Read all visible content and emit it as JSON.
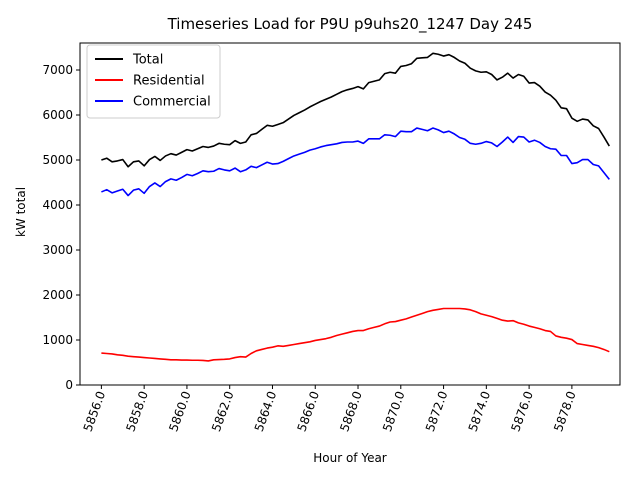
{
  "chart_data": {
    "type": "line",
    "title": "Timeseries Load for P9U p9uhs20_1247  Day 245",
    "xlabel": "Hour of Year",
    "ylabel": "kW total",
    "xlim": [
      5855.0,
      5880.25
    ],
    "ylim": [
      0,
      7600
    ],
    "x_ticks": [
      5856.0,
      5858.0,
      5860.0,
      5862.0,
      5864.0,
      5866.0,
      5868.0,
      5870.0,
      5872.0,
      5874.0,
      5876.0,
      5878.0
    ],
    "x_tick_labels": [
      "5856.0",
      "5858.0",
      "5860.0",
      "5862.0",
      "5864.0",
      "5866.0",
      "5868.0",
      "5870.0",
      "5872.0",
      "5874.0",
      "5876.0",
      "5878.0"
    ],
    "y_ticks": [
      0,
      1000,
      2000,
      3000,
      4000,
      5000,
      6000,
      7000
    ],
    "y_tick_labels": [
      "0",
      "1000",
      "2000",
      "3000",
      "4000",
      "5000",
      "6000",
      "7000"
    ],
    "grid": false,
    "legend_position": "upper-left",
    "x": [
      5856.0,
      5856.25,
      5856.5,
      5856.75,
      5857.0,
      5857.25,
      5857.5,
      5857.75,
      5858.0,
      5858.25,
      5858.5,
      5858.75,
      5859.0,
      5859.25,
      5859.5,
      5859.75,
      5860.0,
      5860.25,
      5860.5,
      5860.75,
      5861.0,
      5861.25,
      5861.5,
      5861.75,
      5862.0,
      5862.25,
      5862.5,
      5862.75,
      5863.0,
      5863.25,
      5863.5,
      5863.75,
      5864.0,
      5864.25,
      5864.5,
      5864.75,
      5865.0,
      5865.25,
      5865.5,
      5865.75,
      5866.0,
      5866.25,
      5866.5,
      5866.75,
      5867.0,
      5867.25,
      5867.5,
      5867.75,
      5868.0,
      5868.25,
      5868.5,
      5868.75,
      5869.0,
      5869.25,
      5869.5,
      5869.75,
      5870.0,
      5870.25,
      5870.5,
      5870.75,
      5871.0,
      5871.25,
      5871.5,
      5871.75,
      5872.0,
      5872.25,
      5872.5,
      5872.75,
      5873.0,
      5873.25,
      5873.5,
      5873.75,
      5874.0,
      5874.25,
      5874.5,
      5874.75,
      5875.0,
      5875.25,
      5875.5,
      5875.75,
      5876.0,
      5876.25,
      5876.5,
      5876.75,
      5877.0,
      5877.25,
      5877.5,
      5877.75,
      5878.0,
      5878.25,
      5878.5,
      5878.75,
      5879.0,
      5879.25,
      5879.5,
      5879.75
    ],
    "series": [
      {
        "name": "Total",
        "color": "#000000",
        "values": [
          5000,
          5040,
          4960,
          4980,
          5010,
          4850,
          4960,
          4980,
          4870,
          5010,
          5080,
          4990,
          5090,
          5140,
          5110,
          5170,
          5230,
          5200,
          5250,
          5300,
          5280,
          5310,
          5370,
          5350,
          5340,
          5430,
          5370,
          5400,
          5560,
          5590,
          5680,
          5770,
          5750,
          5790,
          5830,
          5910,
          5990,
          6050,
          6110,
          6180,
          6240,
          6300,
          6350,
          6400,
          6460,
          6520,
          6560,
          6590,
          6630,
          6580,
          6720,
          6750,
          6780,
          6920,
          6950,
          6930,
          7080,
          7100,
          7140,
          7260,
          7270,
          7280,
          7370,
          7350,
          7310,
          7340,
          7280,
          7200,
          7150,
          7040,
          6980,
          6950,
          6960,
          6900,
          6780,
          6840,
          6930,
          6820,
          6900,
          6860,
          6710,
          6720,
          6640,
          6510,
          6440,
          6330,
          6160,
          6140,
          5930,
          5860,
          5910,
          5890,
          5760,
          5700,
          5510,
          5310
        ]
      },
      {
        "name": "Residential",
        "color": "#ff0000",
        "values": [
          710,
          700,
          690,
          670,
          660,
          640,
          630,
          620,
          610,
          600,
          590,
          580,
          570,
          560,
          560,
          555,
          555,
          550,
          550,
          545,
          535,
          560,
          565,
          570,
          580,
          610,
          630,
          620,
          700,
          760,
          790,
          820,
          840,
          870,
          860,
          880,
          900,
          920,
          940,
          960,
          990,
          1010,
          1030,
          1060,
          1100,
          1130,
          1160,
          1190,
          1210,
          1210,
          1250,
          1280,
          1310,
          1360,
          1400,
          1410,
          1440,
          1470,
          1510,
          1550,
          1590,
          1630,
          1660,
          1680,
          1700,
          1700,
          1700,
          1700,
          1690,
          1670,
          1630,
          1580,
          1550,
          1520,
          1480,
          1440,
          1420,
          1430,
          1380,
          1350,
          1310,
          1280,
          1250,
          1210,
          1190,
          1090,
          1060,
          1040,
          1010,
          920,
          900,
          880,
          860,
          830,
          790,
          740
        ]
      },
      {
        "name": "Commercial",
        "color": "#0000ff",
        "values": [
          4290,
          4340,
          4270,
          4310,
          4350,
          4210,
          4330,
          4360,
          4260,
          4410,
          4490,
          4410,
          4520,
          4580,
          4550,
          4610,
          4680,
          4650,
          4700,
          4760,
          4740,
          4750,
          4810,
          4780,
          4760,
          4820,
          4740,
          4780,
          4860,
          4830,
          4890,
          4950,
          4910,
          4920,
          4970,
          5030,
          5090,
          5130,
          5170,
          5220,
          5250,
          5290,
          5320,
          5340,
          5360,
          5390,
          5400,
          5400,
          5420,
          5370,
          5470,
          5470,
          5470,
          5560,
          5550,
          5520,
          5640,
          5630,
          5630,
          5710,
          5680,
          5650,
          5710,
          5670,
          5610,
          5640,
          5580,
          5500,
          5460,
          5370,
          5350,
          5370,
          5410,
          5380,
          5300,
          5400,
          5510,
          5390,
          5520,
          5510,
          5400,
          5440,
          5390,
          5300,
          5250,
          5240,
          5100,
          5100,
          4920,
          4940,
          5010,
          5010,
          4900,
          4870,
          4720,
          4570
        ]
      }
    ]
  }
}
